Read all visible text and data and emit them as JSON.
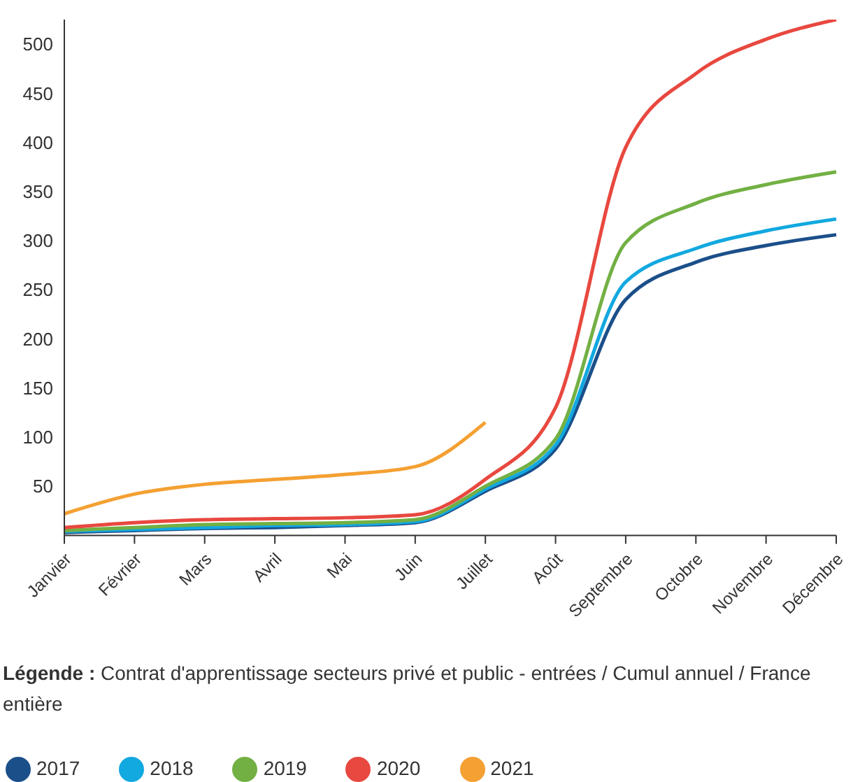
{
  "chart_data": {
    "type": "line",
    "categories": [
      "Janvier",
      "Février",
      "Mars",
      "Avril",
      "Mai",
      "Juin",
      "Juillet",
      "Août",
      "Septembre",
      "Octobre",
      "Novembre",
      "Décembre"
    ],
    "series": [
      {
        "name": "2017",
        "color": "#1b4f8a",
        "values": [
          3,
          5,
          7,
          8,
          10,
          13,
          45,
          88,
          240,
          278,
          295,
          306
        ]
      },
      {
        "name": "2018",
        "color": "#12a8e0",
        "values": [
          4,
          6,
          8,
          10,
          11,
          14,
          47,
          92,
          258,
          292,
          310,
          322
        ]
      },
      {
        "name": "2019",
        "color": "#72b043",
        "values": [
          5,
          8,
          11,
          12,
          13,
          16,
          50,
          98,
          298,
          338,
          357,
          370
        ]
      },
      {
        "name": "2020",
        "color": "#e8483f",
        "values": [
          8,
          13,
          16,
          17,
          18,
          21,
          57,
          130,
          395,
          470,
          505,
          525
        ]
      },
      {
        "name": "2021",
        "color": "#f4a032",
        "values": [
          22,
          42,
          52,
          57,
          62,
          70,
          115,
          null,
          null,
          null,
          null,
          null
        ]
      }
    ],
    "ylim": [
      0,
      525
    ],
    "yticks": [
      50,
      100,
      150,
      200,
      250,
      300,
      350,
      400,
      450,
      500
    ],
    "grid": false,
    "legend": "bottom",
    "marker": "none",
    "line_style": "solid",
    "annotations": [
      "Légende : Contrat d'apprentissage secteurs privé et public - entrées / Cumul annuel / France entière"
    ]
  }
}
